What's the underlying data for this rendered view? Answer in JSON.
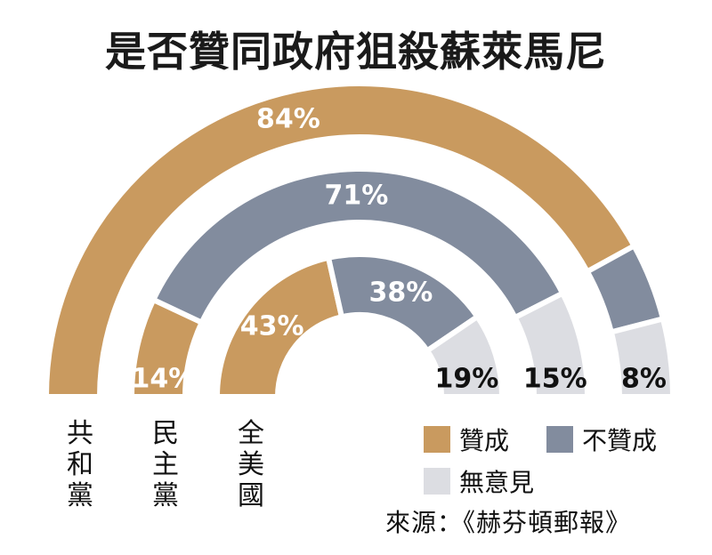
{
  "chart_data": {
    "type": "pie",
    "title": "是否贊同政府狙殺蘇萊馬尼",
    "categories": [
      "共和黨",
      "民主黨",
      "全美國"
    ],
    "legend": [
      "贊成",
      "不贊成",
      "無意見"
    ],
    "series": [
      {
        "name": "贊成",
        "values": [
          84,
          14,
          43
        ]
      },
      {
        "name": "不贊成",
        "values": [
          8,
          71,
          38
        ]
      },
      {
        "name": "無意見",
        "values": [
          8,
          15,
          19
        ]
      }
    ],
    "value_labels": {
      "共和黨": [
        "84%",
        "8%",
        "8%"
      ],
      "民主黨": [
        "14%",
        "71%",
        "15%"
      ],
      "全美國": [
        "43%",
        "38%",
        "19%"
      ]
    },
    "colors": {
      "贊成": "#c99a5f",
      "不贊成": "#828c9e",
      "無意見": "#dcdde2"
    }
  },
  "labels": {
    "rep": [
      "共",
      "和",
      "黨"
    ],
    "dem": [
      "民",
      "主",
      "黨"
    ],
    "all": [
      "全",
      "美",
      "國"
    ]
  },
  "legend": {
    "approve": "贊成",
    "disapprove": "不贊成",
    "no_opinion": "無意見"
  },
  "source": "來源：《赫芬頓郵報》"
}
